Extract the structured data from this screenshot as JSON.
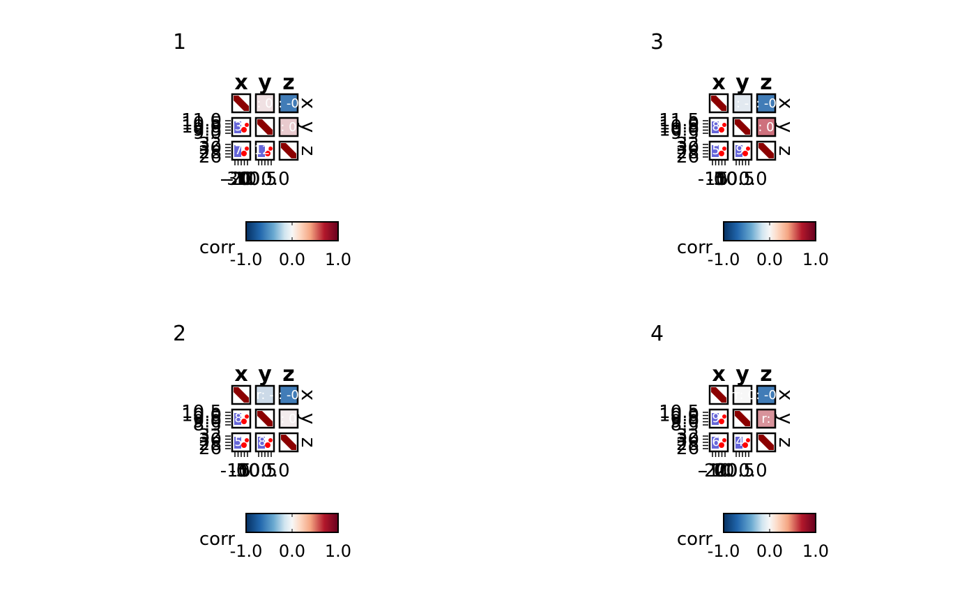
{
  "chart_data": [
    {
      "type": "heatmap",
      "title": "1",
      "variables": [
        "x",
        "y",
        "z"
      ],
      "corr": [
        [
          1.0,
          0.1,
          -0.85
        ],
        [
          0.1,
          1.0,
          0.2
        ],
        [
          -0.85,
          0.2,
          1.0
        ]
      ],
      "cell_text": {
        "0_1": ": 0",
        "0_2": ": -0",
        "1_2": ": 0",
        "1_0": "3",
        "2_0": "7",
        "2_1": "12"
      },
      "y_tick_labels": [
        "11.0",
        "10.5",
        "10.0",
        "9.5",
        "9.0",
        "32",
        "30",
        "28",
        "26"
      ],
      "x_tick_labels": [
        "-30",
        "-20",
        "-10",
        "0",
        "10",
        "0.5",
        "0.0"
      ],
      "legend": {
        "title": "corr",
        "ticks": [
          "-1.0",
          "0.0",
          "1.0"
        ]
      }
    },
    {
      "type": "heatmap",
      "title": "2",
      "variables": [
        "x",
        "y",
        "z"
      ],
      "corr": [
        [
          1.0,
          -0.2,
          -0.85
        ],
        [
          -0.2,
          1.0,
          0.05
        ],
        [
          -0.85,
          0.05,
          1.0
        ]
      ],
      "cell_text": {
        "0_1": "r: -",
        "0_2": ": -0",
        "1_2": ": 0",
        "1_0": "8",
        "2_0": "5",
        "2_1": "8"
      },
      "y_tick_labels": [
        "10.5",
        "10.0",
        "9.5",
        "9.0",
        "8.5",
        "32",
        "30",
        "28",
        "26"
      ],
      "x_tick_labels": [
        "-10",
        "-5",
        "0",
        "5",
        "10",
        "0.5",
        "0.0"
      ],
      "legend": {
        "title": "corr",
        "ticks": [
          "-1.0",
          "0.0",
          "1.0"
        ]
      }
    },
    {
      "type": "heatmap",
      "title": "3",
      "variables": [
        "x",
        "y",
        "z"
      ],
      "corr": [
        [
          1.0,
          -0.1,
          -0.85
        ],
        [
          -0.1,
          1.0,
          0.6
        ],
        [
          -0.85,
          0.6,
          1.0
        ]
      ],
      "cell_text": {
        "0_1": ": -",
        "0_2": ": -0",
        "1_2": ": 0",
        "1_0": "8",
        "2_0": "5",
        "2_1": "9"
      },
      "y_tick_labels": [
        "11.5",
        "11.0",
        "10.5",
        "10.0",
        "9.5",
        "32",
        "30",
        "28",
        "26"
      ],
      "x_tick_labels": [
        "-10",
        "-5",
        "0",
        "5",
        "10",
        "0.5",
        "0.0"
      ],
      "legend": {
        "title": "corr",
        "ticks": [
          "-1.0",
          "0.0",
          "1.0"
        ]
      }
    },
    {
      "type": "heatmap",
      "title": "4",
      "variables": [
        "x",
        "y",
        "z"
      ],
      "corr": [
        [
          1.0,
          0.0,
          -0.85
        ],
        [
          0.0,
          1.0,
          0.45
        ],
        [
          -0.85,
          0.45,
          1.0
        ]
      ],
      "cell_text": {
        "0_1": "rr: 0",
        "0_2": ": -0",
        "1_2": "r: ",
        "1_0": "9",
        "2_0": "6",
        "2_1": "4"
      },
      "y_tick_labels": [
        "10.5",
        "10.0",
        "9.5",
        "9.0",
        "8.5",
        "32",
        "30",
        "28",
        "26"
      ],
      "x_tick_labels": [
        "-20",
        "-10",
        "0",
        "10",
        "20",
        "0.5",
        "0.0"
      ],
      "legend": {
        "title": "corr",
        "ticks": [
          "-1.0",
          "0.0",
          "1.0"
        ]
      }
    }
  ],
  "colors": {
    "neg": "#2166ac",
    "mid": "#f7f7f7",
    "pos": "#b2182b",
    "diag_fill": "#8b0000",
    "point_red": "#ff0000",
    "point_blue": "#3333cc"
  }
}
